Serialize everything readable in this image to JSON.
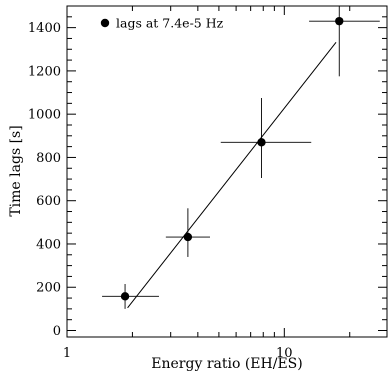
{
  "chart_data": {
    "type": "scatter",
    "title": "",
    "xlabel": "Energy ratio (EH/ES)",
    "ylabel": "Time lags [s]",
    "x_scale": "log",
    "xlim": [
      1,
      30
    ],
    "ylim": [
      -30,
      1500
    ],
    "x_ticks_major": [
      {
        "value": 1,
        "label": "1"
      },
      {
        "value": 10,
        "label": "10"
      }
    ],
    "x_ticks_minor": [
      2,
      3,
      4,
      5,
      6,
      7,
      8,
      9,
      20,
      30
    ],
    "y_ticks": [
      {
        "value": 0,
        "label": "0"
      },
      {
        "value": 200,
        "label": "200"
      },
      {
        "value": 400,
        "label": "400"
      },
      {
        "value": 600,
        "label": "600"
      },
      {
        "value": 800,
        "label": "800"
      },
      {
        "value": 1000,
        "label": "1000"
      },
      {
        "value": 1200,
        "label": "1200"
      },
      {
        "value": 1400,
        "label": "1400"
      }
    ],
    "y_minor_step": 50,
    "legend": {
      "label": "lags at 7.4e-5 Hz",
      "position": "top-left"
    },
    "grid": false,
    "series": [
      {
        "name": "lags at 7.4e-5 Hz",
        "points": [
          {
            "x": 1.85,
            "y": 158,
            "xerr_low": 1.45,
            "xerr_high": 2.65,
            "yerr_low": 100,
            "yerr_high": 215
          },
          {
            "x": 3.6,
            "y": 432,
            "xerr_low": 2.85,
            "xerr_high": 4.55,
            "yerr_low": 340,
            "yerr_high": 565
          },
          {
            "x": 7.85,
            "y": 870,
            "xerr_low": 5.1,
            "xerr_high": 13.3,
            "yerr_low": 705,
            "yerr_high": 1075
          },
          {
            "x": 17.9,
            "y": 1430,
            "xerr_low": 13.0,
            "xerr_high": 27.5,
            "yerr_low": 1175,
            "yerr_high": 1510
          }
        ]
      }
    ],
    "fit_line": {
      "x": [
        1.9,
        17.3
      ],
      "y": [
        105,
        1332
      ]
    }
  }
}
